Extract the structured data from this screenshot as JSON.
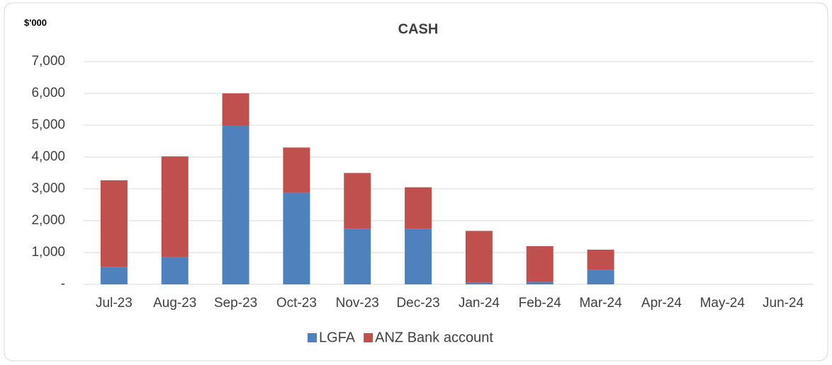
{
  "chart_data": {
    "type": "bar",
    "stacked": true,
    "title": "CASH",
    "unit_label": "$'000",
    "categories": [
      "Jul-23",
      "Aug-23",
      "Sep-23",
      "Oct-23",
      "Nov-23",
      "Dec-23",
      "Jan-24",
      "Feb-24",
      "Mar-24",
      "Apr-24",
      "May-24",
      "Jun-24"
    ],
    "series": [
      {
        "name": "LGFA",
        "color": "#4f81bd",
        "values": [
          550,
          850,
          5000,
          2880,
          1750,
          1750,
          50,
          80,
          460,
          null,
          null,
          null
        ]
      },
      {
        "name": "ANZ Bank account",
        "color": "#c0504d",
        "values": [
          2720,
          3170,
          1000,
          1420,
          1750,
          1300,
          1630,
          1120,
          630,
          null,
          null,
          null
        ]
      }
    ],
    "ylim": [
      0,
      7000
    ],
    "yticks": [
      {
        "value": 0,
        "label": "-"
      },
      {
        "value": 1000,
        "label": "1,000"
      },
      {
        "value": 2000,
        "label": "2,000"
      },
      {
        "value": 3000,
        "label": "3,000"
      },
      {
        "value": 4000,
        "label": "4,000"
      },
      {
        "value": 5000,
        "label": "5,000"
      },
      {
        "value": 6000,
        "label": "6,000"
      },
      {
        "value": 7000,
        "label": "7,000"
      }
    ],
    "grid": true,
    "legend": "bottom"
  }
}
